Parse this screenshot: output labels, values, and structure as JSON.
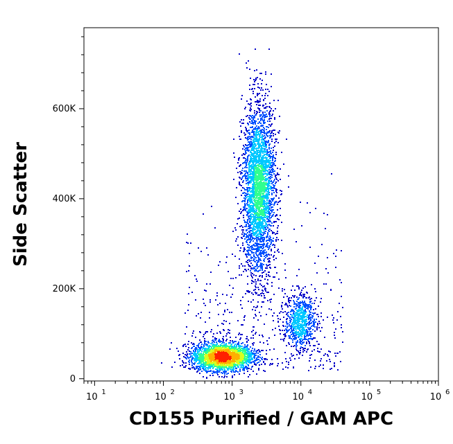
{
  "chart_data": {
    "type": "scatter",
    "subtype": "flow-cytometry-density-dot-plot",
    "xlabel": "CD155 Purified / GAM APC",
    "ylabel": "Side Scatter",
    "x_scale": "log",
    "xlim": [
      7,
      1000000
    ],
    "ylim": [
      -5000,
      780000
    ],
    "x_ticks": [
      {
        "value": 10,
        "base": "10",
        "exp": "1"
      },
      {
        "value": 100,
        "base": "10",
        "exp": "2"
      },
      {
        "value": 1000,
        "base": "10",
        "exp": "3"
      },
      {
        "value": 10000,
        "base": "10",
        "exp": "4"
      },
      {
        "value": 100000,
        "base": "10",
        "exp": "5"
      },
      {
        "value": 1000000,
        "base": "10",
        "exp": "6"
      }
    ],
    "y_ticks": [
      {
        "value": 0,
        "label": "0"
      },
      {
        "value": 200000,
        "label": "200K"
      },
      {
        "value": 400000,
        "label": "400K"
      },
      {
        "value": 600000,
        "label": "600K"
      }
    ],
    "density_colors": [
      "#0000c8",
      "#0050ff",
      "#00c8ff",
      "#30ff90",
      "#d8ff20",
      "#ffb000",
      "#ff2000"
    ],
    "populations": [
      {
        "name": "cluster-low",
        "center_log10_x": 2.85,
        "center_y": 50000,
        "sd_log10_x": 0.22,
        "sd_y": 15000,
        "count": 2600
      },
      {
        "name": "cluster-tall",
        "center_log10_x": 3.38,
        "center_y": 420000,
        "sd_log10_x": 0.12,
        "sd_y": 95000,
        "count": 3200
      },
      {
        "name": "cluster-mid",
        "center_log10_x": 3.98,
        "center_y": 130000,
        "sd_log10_x": 0.11,
        "sd_y": 30000,
        "count": 700
      },
      {
        "name": "scatter-bridge",
        "center_log10_x": 3.2,
        "center_y": 180000,
        "sd_log10_x": 0.35,
        "sd_y": 120000,
        "count": 500
      }
    ],
    "grid": false,
    "legend": "none"
  },
  "labels": {
    "x_title": "CD155 Purified / GAM APC",
    "y_title": "Side Scatter"
  }
}
